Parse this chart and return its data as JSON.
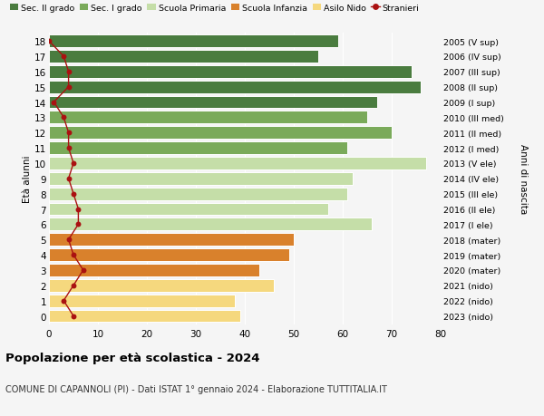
{
  "ages": [
    18,
    17,
    16,
    15,
    14,
    13,
    12,
    11,
    10,
    9,
    8,
    7,
    6,
    5,
    4,
    3,
    2,
    1,
    0
  ],
  "years": [
    "2005 (V sup)",
    "2006 (IV sup)",
    "2007 (III sup)",
    "2008 (II sup)",
    "2009 (I sup)",
    "2010 (III med)",
    "2011 (II med)",
    "2012 (I med)",
    "2013 (V ele)",
    "2014 (IV ele)",
    "2015 (III ele)",
    "2016 (II ele)",
    "2017 (I ele)",
    "2018 (mater)",
    "2019 (mater)",
    "2020 (mater)",
    "2021 (nido)",
    "2022 (nido)",
    "2023 (nido)"
  ],
  "bar_values": [
    59,
    55,
    74,
    76,
    67,
    65,
    70,
    61,
    77,
    62,
    61,
    57,
    66,
    50,
    49,
    43,
    46,
    38,
    39
  ],
  "bar_colors": [
    "#4a7c3f",
    "#4a7c3f",
    "#4a7c3f",
    "#4a7c3f",
    "#4a7c3f",
    "#7aaa5a",
    "#7aaa5a",
    "#7aaa5a",
    "#c5dea8",
    "#c5dea8",
    "#c5dea8",
    "#c5dea8",
    "#c5dea8",
    "#d9812c",
    "#d9812c",
    "#d9812c",
    "#f5d87e",
    "#f5d87e",
    "#f5d87e"
  ],
  "stranieri_values": [
    0,
    3,
    4,
    4,
    1,
    3,
    4,
    4,
    5,
    4,
    5,
    6,
    6,
    4,
    5,
    7,
    5,
    3,
    5
  ],
  "legend_labels": [
    "Sec. II grado",
    "Sec. I grado",
    "Scuola Primaria",
    "Scuola Infanzia",
    "Asilo Nido",
    "Stranieri"
  ],
  "legend_colors": [
    "#4a7c3f",
    "#7aaa5a",
    "#c5dea8",
    "#d9812c",
    "#f5d87e",
    "#aa1111"
  ],
  "xlim": [
    0,
    80
  ],
  "ylabel": "Età alunni",
  "right_ylabel": "Anni di nascita",
  "title": "Popolazione per età scolastica - 2024",
  "subtitle": "COMUNE DI CAPANNOLI (PI) - Dati ISTAT 1° gennaio 2024 - Elaborazione TUTTITALIA.IT",
  "background_color": "#f5f5f5",
  "stranieri_color": "#aa1111",
  "bar_height": 0.82
}
